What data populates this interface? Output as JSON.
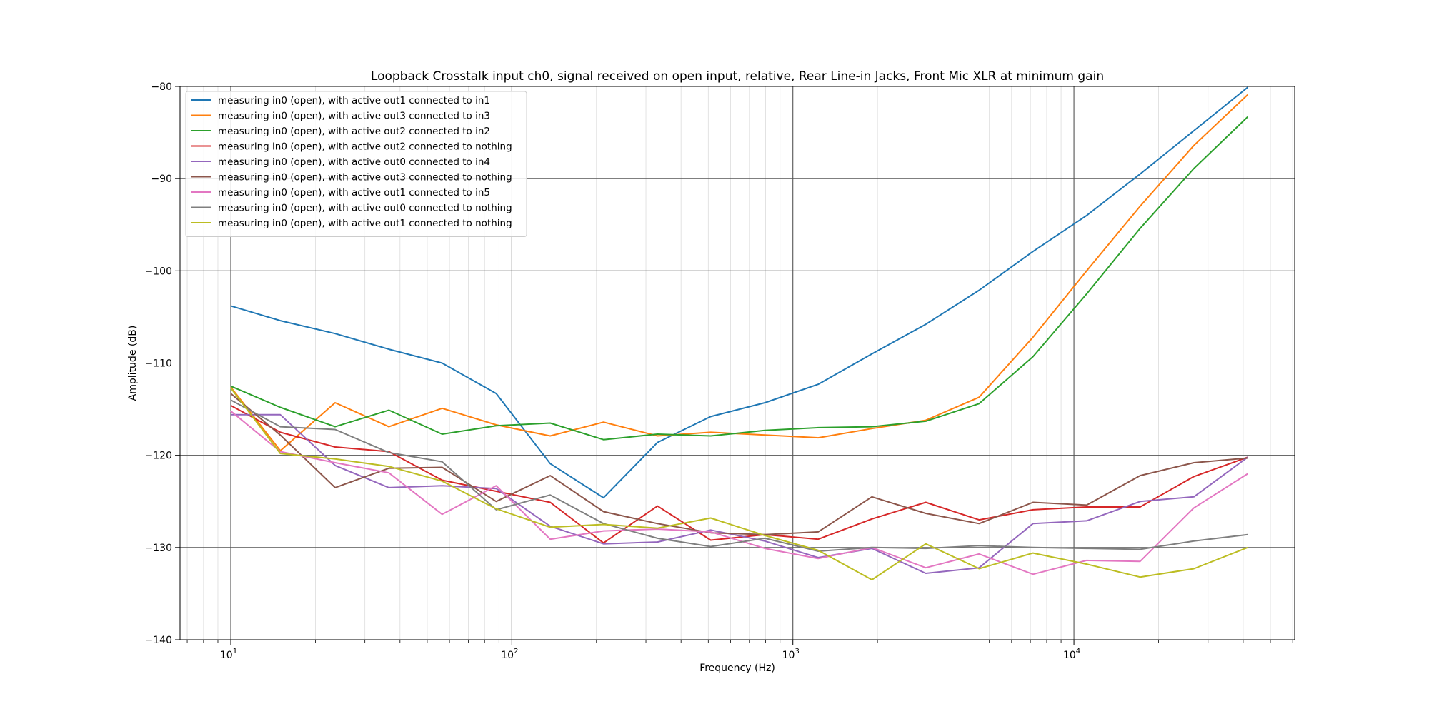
{
  "chart_data": {
    "type": "line",
    "title": "Loopback Crosstalk input ch0, signal received on open input, relative, Rear Line-in Jacks, Front Mic XLR at minimum gain",
    "xlabel": "Frequency (Hz)",
    "ylabel": "Amplitude (dB)",
    "xscale": "log",
    "xlim": [
      6.6,
      61000
    ],
    "ylim": [
      -140,
      -80
    ],
    "x_ticks": [
      {
        "value": 10,
        "base": "10",
        "exp": "1"
      },
      {
        "value": 100,
        "base": "10",
        "exp": "2"
      },
      {
        "value": 1000,
        "base": "10",
        "exp": "3"
      },
      {
        "value": 10000,
        "base": "10",
        "exp": "4"
      }
    ],
    "y_ticks": [
      -140,
      -130,
      -120,
      -110,
      -100,
      -90,
      -80
    ],
    "grid": "major and minor",
    "legend_position": "upper left",
    "x": [
      10,
      15,
      23.5,
      36.5,
      56.5,
      88,
      137,
      212,
      330,
      510,
      795,
      1230,
      1910,
      2970,
      4600,
      7150,
      11100,
      17200,
      26700,
      41500
    ],
    "series": [
      {
        "name": "measuring in0 (open), with active out1 connected to in1",
        "color": "#1f77b4",
        "values": [
          -103.8,
          -105.4,
          -106.8,
          -108.5,
          -110.0,
          -113.3,
          -120.9,
          -124.6,
          -118.6,
          -115.8,
          -114.3,
          -112.3,
          -109.0,
          -105.8,
          -102.1,
          -97.9,
          -94.0,
          -89.5,
          -84.8,
          -80.1
        ]
      },
      {
        "name": "measuring in0 (open), with active out3 connected to in3",
        "color": "#ff7f0e",
        "values": [
          -112.6,
          -119.5,
          -114.3,
          -116.9,
          -114.9,
          -116.7,
          -117.9,
          -116.4,
          -117.9,
          -117.5,
          -117.8,
          -118.1,
          -117.1,
          -116.2,
          -113.7,
          -107.2,
          -100.0,
          -93.0,
          -86.4,
          -80.9
        ]
      },
      {
        "name": "measuring in0 (open), with active out2 connected to in2",
        "color": "#2ca02c",
        "values": [
          -112.5,
          -114.8,
          -116.9,
          -115.1,
          -117.7,
          -116.8,
          -116.5,
          -118.3,
          -117.7,
          -117.9,
          -117.3,
          -117.0,
          -116.9,
          -116.3,
          -114.4,
          -109.3,
          -102.5,
          -95.4,
          -88.9,
          -83.3
        ]
      },
      {
        "name": "measuring in0 (open), with active out2 connected to nothing",
        "color": "#d62728",
        "values": [
          -114.6,
          -117.5,
          -119.1,
          -119.6,
          -122.7,
          -123.9,
          -125.1,
          -129.5,
          -125.5,
          -129.2,
          -128.6,
          -129.1,
          -126.9,
          -125.1,
          -127.0,
          -125.9,
          -125.6,
          -125.6,
          -122.3,
          -120.2
        ]
      },
      {
        "name": "measuring in0 (open), with active out0 connected to in4",
        "color": "#9467bd",
        "values": [
          -115.6,
          -115.6,
          -121.1,
          -123.5,
          -123.3,
          -123.6,
          -127.7,
          -129.6,
          -129.4,
          -128.1,
          -129.3,
          -131.1,
          -130.1,
          -132.8,
          -132.2,
          -127.4,
          -127.1,
          -125.0,
          -124.5,
          -120.2
        ]
      },
      {
        "name": "measuring in0 (open), with active out3 connected to nothing",
        "color": "#8c564b",
        "values": [
          -113.3,
          -117.8,
          -123.5,
          -121.4,
          -121.3,
          -125.0,
          -122.2,
          -126.1,
          -127.4,
          -128.4,
          -128.6,
          -128.3,
          -124.5,
          -126.3,
          -127.4,
          -125.1,
          -125.4,
          -122.2,
          -120.8,
          -120.3
        ]
      },
      {
        "name": "measuring in0 (open), with active out1 connected to in5",
        "color": "#e377c2",
        "values": [
          -115.2,
          -119.6,
          -120.8,
          -121.9,
          -126.4,
          -123.3,
          -129.1,
          -128.2,
          -128.0,
          -128.3,
          -130.1,
          -131.2,
          -130.0,
          -132.2,
          -130.7,
          -132.9,
          -131.4,
          -131.5,
          -125.7,
          -122.0
        ]
      },
      {
        "name": "measuring in0 (open), with active out0 connected to nothing",
        "color": "#7f7f7f",
        "values": [
          -114.0,
          -116.9,
          -117.2,
          -119.7,
          -120.7,
          -125.9,
          -124.3,
          -127.4,
          -129.0,
          -129.9,
          -129.0,
          -130.4,
          -130.0,
          -130.1,
          -129.8,
          -130.0,
          -130.1,
          -130.2,
          -129.3,
          -128.6
        ]
      },
      {
        "name": "measuring in0 (open), with active out1 connected to nothing",
        "color": "#bcbd22",
        "values": [
          -112.7,
          -119.8,
          -120.4,
          -121.2,
          -122.8,
          -125.8,
          -127.8,
          -127.5,
          -127.9,
          -126.8,
          -128.7,
          -130.3,
          -133.5,
          -129.6,
          -132.3,
          -130.6,
          -131.8,
          -133.2,
          -132.3,
          -130.0
        ]
      }
    ]
  }
}
